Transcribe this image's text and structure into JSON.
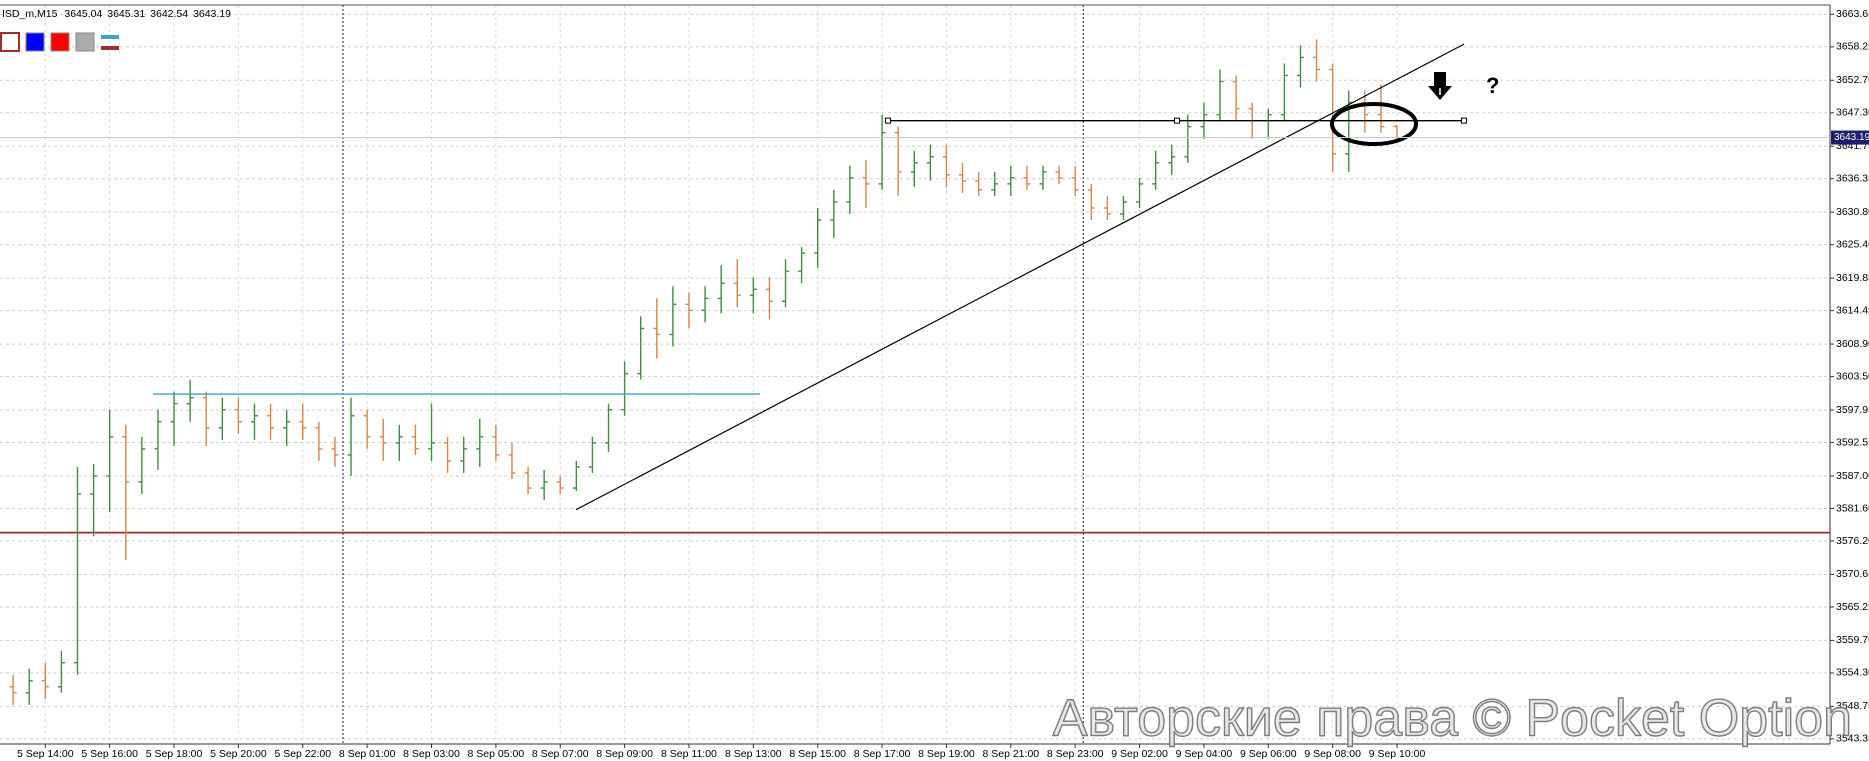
{
  "chart_data": {
    "type": "ohlc",
    "symbol": "ISD_m,M15",
    "categories": [
      null,
      null,
      "5 Sep 14:00",
      null,
      null,
      null,
      "5 Sep 16:00",
      null,
      null,
      null,
      "5 Sep 18:00",
      null,
      null,
      null,
      "5 Sep 20:00",
      null,
      null,
      null,
      "5 Sep 22:00",
      null,
      null,
      null,
      "8 Sep 01:00",
      null,
      null,
      null,
      "8 Sep 03:00",
      null,
      null,
      null,
      "8 Sep 05:00",
      null,
      null,
      null,
      "8 Sep 07:00",
      null,
      null,
      null,
      "8 Sep 09:00",
      null,
      null,
      null,
      "8 Sep 11:00",
      null,
      null,
      null,
      "8 Sep 13:00",
      null,
      null,
      null,
      "8 Sep 15:00",
      null,
      null,
      null,
      "8 Sep 17:00",
      null,
      null,
      null,
      "8 Sep 19:00",
      null,
      null,
      null,
      "8 Sep 21:00",
      null,
      null,
      null,
      "8 Sep 23:00",
      null,
      null,
      null,
      "9 Sep 02:00",
      null,
      null,
      null,
      "9 Sep 04:00",
      null,
      null,
      null,
      "9 Sep 06:00",
      null,
      null,
      null,
      "9 Sep 08:00",
      null,
      null,
      null,
      "9 Sep 10:00"
    ],
    "open": [
      3552,
      3551,
      3553,
      3552,
      3556,
      3584,
      3587,
      3593.5,
      3586,
      3591.5,
      3596,
      3599,
      3600,
      3595,
      3598,
      3596,
      3597,
      3595,
      3596,
      3595,
      3591.5,
      3590.5,
      3597,
      3593.5,
      3592.5,
      3593.5,
      3591.5,
      3592.5,
      3589.5,
      3591.5,
      3593.5,
      3590.5,
      3587.5,
      3585,
      3586,
      3585,
      3588.5,
      3592.5,
      3598,
      3604,
      3611.5,
      3610.5,
      3615.5,
      3614.5,
      3616.5,
      3619,
      3617,
      3618,
      3616,
      3621,
      3624,
      3629.5,
      3632.5,
      3636.5,
      3635.5,
      3644,
      3637.5,
      3639,
      3640,
      3637,
      3636,
      3634.5,
      3635.5,
      3636.5,
      3635.5,
      3637.5,
      3636.5,
      3634.5,
      3631.5,
      3630.5,
      3632.5,
      3635.5,
      3639,
      3640,
      3645,
      3647,
      3652.5,
      3648,
      3646,
      3647,
      3653.5,
      3656.5,
      3654.5,
      3640.5,
      3649,
      3647,
      3645.04
    ],
    "high": [
      3554,
      3555,
      3556,
      3558,
      3588.5,
      3589,
      3598,
      3595.5,
      3593.5,
      3598,
      3601,
      3603,
      3601,
      3600,
      3600,
      3599,
      3599,
      3598,
      3599,
      3596,
      3593.5,
      3600,
      3598,
      3596.5,
      3595.5,
      3595.5,
      3599,
      3593.5,
      3593.5,
      3596.5,
      3595.5,
      3592.5,
      3588.5,
      3588,
      3587,
      3589.5,
      3593.5,
      3599,
      3606,
      3613.5,
      3616.5,
      3618.5,
      3617.5,
      3618.5,
      3622,
      3623,
      3620,
      3620,
      3623,
      3625,
      3631.5,
      3634.5,
      3638.5,
      3639.5,
      3647,
      3645,
      3641,
      3642,
      3642,
      3639,
      3637.5,
      3637.5,
      3638.5,
      3638.5,
      3638.5,
      3638.5,
      3638.5,
      3635.5,
      3633.5,
      3633.5,
      3636.5,
      3641,
      3642,
      3647,
      3649,
      3654.5,
      3653.5,
      3649,
      3648,
      3655.5,
      3658.5,
      3659.5,
      3655.5,
      3651,
      3651,
      3652,
      3645.31
    ],
    "low": [
      3549,
      3549,
      3550,
      3551,
      3554,
      3577,
      3581,
      3573,
      3584,
      3588,
      3592,
      3596,
      3592,
      3593,
      3594,
      3593,
      3593,
      3592,
      3593,
      3589.5,
      3588.5,
      3587,
      3591.5,
      3589.5,
      3589.5,
      3590.5,
      3589.5,
      3587.5,
      3587.5,
      3588.5,
      3589.5,
      3586.5,
      3584,
      3583,
      3584,
      3584.5,
      3587.5,
      3591,
      3597,
      3603,
      3606.5,
      3608.5,
      3611.5,
      3612.5,
      3614,
      3615,
      3614,
      3613,
      3615,
      3619,
      3621.5,
      3626.5,
      3630.5,
      3631.5,
      3634.5,
      3633.5,
      3635,
      3636,
      3635,
      3634,
      3633.5,
      3633.5,
      3633.5,
      3634.5,
      3634.5,
      3635.5,
      3633.5,
      3629.5,
      3629.5,
      3629.5,
      3631.5,
      3634.5,
      3637,
      3639,
      3643,
      3646,
      3646,
      3643,
      3643,
      3646,
      3651.5,
      3652.5,
      3637.5,
      3637.5,
      3644,
      3644,
      3642.54
    ],
    "close": [
      3551,
      3553,
      3552,
      3556,
      3584,
      3587,
      3593.5,
      3586,
      3591.5,
      3596,
      3599,
      3600,
      3595,
      3598,
      3596,
      3597,
      3595,
      3596,
      3595,
      3591.5,
      3590.5,
      3597,
      3593.5,
      3592.5,
      3593.5,
      3591.5,
      3592.5,
      3589.5,
      3591.5,
      3593.5,
      3590.5,
      3587.5,
      3585,
      3586,
      3585,
      3588.5,
      3592.5,
      3598,
      3604,
      3611.5,
      3610.5,
      3615.5,
      3614.5,
      3616.5,
      3619,
      3617,
      3618,
      3616,
      3621,
      3624,
      3629.5,
      3632.5,
      3636.5,
      3635.5,
      3644,
      3637.5,
      3639,
      3640,
      3637,
      3636,
      3634.5,
      3635.5,
      3636.5,
      3635.5,
      3637.5,
      3636.5,
      3634.5,
      3631.5,
      3630.5,
      3632.5,
      3635.5,
      3639,
      3640,
      3645,
      3647,
      3652.5,
      3648,
      3646,
      3647,
      3653.5,
      3656.5,
      3654.5,
      3640.5,
      3649,
      3647,
      3645,
      3643.19
    ],
    "up_color": "#3f8f3f",
    "down_color": "#d4874a",
    "ylim": [
      3542.5,
      3665.2
    ],
    "yticks": [
      3663.65,
      3658.25,
      {
        "value": 3652.7,
        "label": "3652.70"
      },
      {
        "value": 3647.3,
        "label": "3647.30"
      },
      3641.75,
      3636.35,
      {
        "value": 3630.8,
        "label": "3630.80"
      },
      {
        "value": 3625.4,
        "label": "3625.40"
      },
      3619.85,
      3614.45,
      {
        "value": 3608.9,
        "label": "3608.90"
      },
      {
        "value": 3603.5,
        "label": "3603.50"
      },
      3597.95,
      3592.55,
      {
        "value": 3587,
        "label": "3587.00"
      },
      {
        "value": 3581.6,
        "label": "3581.60"
      },
      {
        "value": 3576.2,
        "label": "3576.20"
      },
      3570.65,
      3565.25,
      {
        "value": 3559.7,
        "label": "3559.70"
      },
      {
        "value": 3554.3,
        "label": "3554.30"
      },
      3548.75,
      3543.35
    ],
    "grid": true,
    "levels": [
      {
        "price": 3577.6,
        "color": "#a52a2a"
      },
      {
        "price": 3600.6,
        "color": "#3fa0c8"
      },
      {
        "price": 3646.0,
        "color": "#000000"
      }
    ],
    "trendline": {
      "start": 3581.4,
      "end": 3658.7,
      "color": "#000000"
    },
    "annotation": "?",
    "watermark": "Авторские права © Pocket Option"
  }
}
